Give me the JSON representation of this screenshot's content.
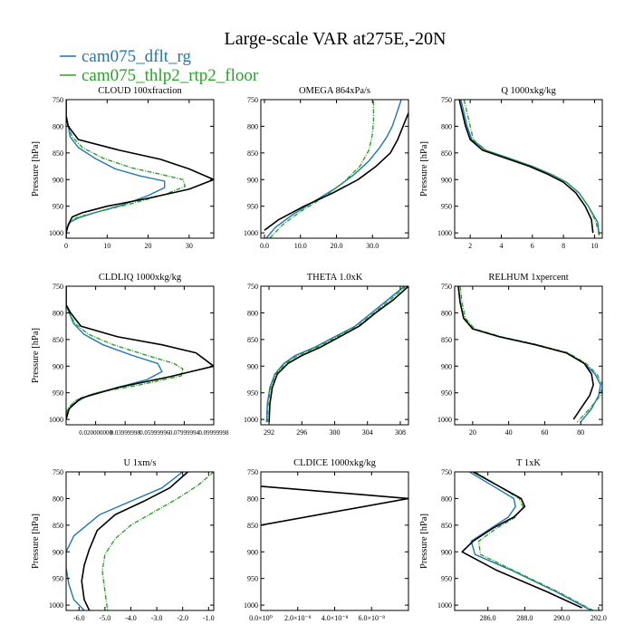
{
  "figure": {
    "title": "Large-scale VAR at275E,-20N",
    "legend": [
      {
        "name": "cam075_dflt_rg",
        "color": "#1f77b4"
      },
      {
        "name": "cam075_thlp2_rtp2_floor",
        "color": "#2ca02c"
      }
    ]
  },
  "colors": {
    "cam075_dflt_rg": "#1f77b4",
    "cam075_thlp2_rtp2_floor": "#2ca02c",
    "unlabeled_black": "#000000"
  },
  "chart_data": [
    {
      "type": "line",
      "title": "CLOUD  100xfraction",
      "ylabel": "Pressure [hPa]",
      "ylim": [
        1010,
        750
      ],
      "yticks": [
        750,
        800,
        850,
        900,
        950,
        1000
      ],
      "xlim": [
        0,
        36
      ],
      "xticks": [
        0,
        10,
        20,
        30
      ],
      "xticklabels": [
        "0",
        "10",
        "20",
        "30"
      ],
      "series": [
        {
          "name": "cam075_dflt_rg",
          "color": "#1f77b4",
          "x": [
            0,
            0,
            0.5,
            1,
            3,
            7,
            12,
            18,
            24,
            24,
            20,
            14,
            7,
            3,
            1,
            0.3,
            0,
            0
          ],
          "y": [
            750,
            780,
            800,
            820,
            840,
            860,
            880,
            893,
            903,
            915,
            930,
            947,
            962,
            972,
            980,
            990,
            1000,
            1010
          ]
        },
        {
          "name": "cam075_thlp2_rtp2_floor",
          "color": "#2ca02c",
          "x": [
            0,
            0,
            0.5,
            1.5,
            4,
            9,
            16,
            23,
            28.5,
            29,
            24,
            16,
            8,
            3,
            1,
            0.3,
            0,
            0
          ],
          "y": [
            750,
            780,
            800,
            820,
            840,
            860,
            878,
            890,
            900,
            913,
            928,
            945,
            960,
            970,
            978,
            990,
            1000,
            1010
          ]
        },
        {
          "color": "#000000",
          "x": [
            0,
            0,
            0.5,
            3,
            13,
            23,
            30,
            36,
            30,
            20,
            10,
            4,
            1.5,
            0.5,
            0,
            0
          ],
          "y": [
            750,
            780,
            800,
            825,
            845,
            862,
            880,
            900,
            918,
            935,
            950,
            962,
            970,
            985,
            1000,
            1010
          ]
        }
      ]
    },
    {
      "type": "line",
      "title": "OMEGA  864xPa/s",
      "ylabel": "",
      "ylim": [
        1010,
        750
      ],
      "yticks": [
        750,
        800,
        850,
        900,
        950,
        1000
      ],
      "xlim": [
        -1,
        40
      ],
      "xticks": [
        0,
        10,
        20,
        30
      ],
      "xticklabels": [
        "0.0",
        "10.0",
        "20.0",
        "30.0"
      ],
      "series": [
        {
          "name": "cam075_dflt_rg",
          "color": "#1f77b4",
          "x": [
            0.5,
            3,
            8,
            14,
            20,
            25,
            29,
            32,
            34,
            35.5,
            36.5,
            37.5,
            38
          ],
          "y": [
            1010,
            990,
            965,
            940,
            915,
            890,
            865,
            840,
            820,
            800,
            780,
            760,
            750
          ]
        },
        {
          "name": "cam075_thlp2_rtp2_floor",
          "color": "#2ca02c",
          "x": [
            1.5,
            5,
            10,
            16,
            22,
            26.5,
            29,
            30,
            30.3,
            30.3,
            30.3
          ],
          "y": [
            1010,
            985,
            960,
            935,
            905,
            875,
            845,
            815,
            790,
            770,
            750
          ]
        },
        {
          "color": "#000000",
          "x": [
            0,
            4,
            11,
            19,
            26,
            31,
            35,
            37,
            38.5,
            40
          ],
          "y": [
            995,
            975,
            950,
            925,
            900,
            875,
            850,
            825,
            800,
            775
          ]
        }
      ]
    },
    {
      "type": "line",
      "title": "Q  1000xkg/kg",
      "ylabel": "Pressure [hPa]",
      "ylim": [
        1010,
        750
      ],
      "yticks": [
        750,
        800,
        850,
        900,
        950,
        1000
      ],
      "xlim": [
        1,
        10.5
      ],
      "xticks": [
        2,
        4,
        6,
        8,
        10
      ],
      "xticklabels": [
        "2",
        "4",
        "6",
        "8",
        "10"
      ],
      "series": [
        {
          "name": "cam075_dflt_rg",
          "color": "#1f77b4",
          "x": [
            1.4,
            1.6,
            1.8,
            2.1,
            3,
            4.5,
            6,
            7.2,
            8.2,
            9,
            9.6,
            10.2,
            10.3
          ],
          "y": [
            750,
            775,
            800,
            825,
            845,
            860,
            875,
            890,
            905,
            925,
            950,
            980,
            1005
          ]
        },
        {
          "name": "cam075_thlp2_rtp2_floor",
          "color": "#2ca02c",
          "x": [
            1.6,
            1.8,
            2,
            2.2,
            3,
            4.5,
            6,
            7.2,
            8.2,
            9,
            9.6,
            10.1,
            10.3
          ],
          "y": [
            750,
            775,
            800,
            825,
            845,
            860,
            875,
            890,
            905,
            925,
            950,
            980,
            1005
          ]
        },
        {
          "color": "#000000",
          "x": [
            1.3,
            1.5,
            1.7,
            2,
            2.8,
            4.3,
            5.8,
            7,
            8,
            8.8,
            9.4,
            9.8,
            9.9
          ],
          "y": [
            750,
            775,
            800,
            825,
            845,
            860,
            875,
            890,
            905,
            925,
            950,
            975,
            1000
          ]
        }
      ]
    },
    {
      "type": "line",
      "title": "CLDLIQ  1000xkg/kg",
      "ylabel": "Pressure [hPa]",
      "ylim": [
        1010,
        750
      ],
      "yticks": [
        750,
        800,
        850,
        900,
        950,
        1000
      ],
      "xlim": [
        0,
        0.1
      ],
      "xticks": [
        0.02,
        0.04,
        0.06,
        0.08,
        0.1
      ],
      "xticklabels": [
        "0.020000000",
        "0.03999998",
        "0.05999996",
        "0.07999994",
        "0.09999998"
      ],
      "series": [
        {
          "name": "cam075_dflt_rg",
          "color": "#1f77b4",
          "x": [
            0,
            0,
            0.002,
            0.005,
            0.012,
            0.025,
            0.045,
            0.062,
            0.065,
            0.055,
            0.035,
            0.015,
            0.005,
            0.001,
            0
          ],
          "y": [
            750,
            785,
            800,
            820,
            840,
            860,
            880,
            895,
            910,
            925,
            940,
            955,
            970,
            985,
            1000
          ]
        },
        {
          "name": "cam075_thlp2_rtp2_floor",
          "color": "#2ca02c",
          "x": [
            0,
            0,
            0.002,
            0.006,
            0.015,
            0.032,
            0.055,
            0.073,
            0.079,
            0.078,
            0.05,
            0.02,
            0.006,
            0.001,
            0
          ],
          "y": [
            750,
            785,
            800,
            820,
            840,
            860,
            880,
            895,
            905,
            918,
            935,
            950,
            965,
            980,
            1000
          ]
        },
        {
          "color": "#000000",
          "x": [
            0,
            0,
            0.003,
            0.01,
            0.035,
            0.065,
            0.088,
            0.1,
            0.07,
            0.035,
            0.01,
            0.002,
            0
          ],
          "y": [
            750,
            785,
            800,
            825,
            845,
            860,
            875,
            900,
            920,
            940,
            960,
            980,
            1000
          ]
        }
      ]
    },
    {
      "type": "line",
      "title": "THETA  1.0xK",
      "ylabel": "",
      "ylim": [
        1010,
        750
      ],
      "yticks": [
        750,
        800,
        850,
        900,
        950,
        1000
      ],
      "xlim": [
        291,
        309
      ],
      "xticks": [
        292,
        296,
        300,
        304,
        308
      ],
      "xticklabels": [
        "292",
        "296",
        "300",
        "304",
        "308"
      ],
      "series": [
        {
          "name": "cam075_dflt_rg",
          "color": "#1f77b4",
          "x": [
            308.5,
            306.5,
            304.5,
            302.5,
            300,
            297.5,
            295.2,
            293.8,
            292.7,
            292.1,
            291.8,
            291.7
          ],
          "y": [
            750,
            775,
            800,
            825,
            845,
            865,
            880,
            895,
            915,
            940,
            970,
            1005
          ]
        },
        {
          "name": "cam075_thlp2_rtp2_floor",
          "color": "#2ca02c",
          "x": [
            308.7,
            306.8,
            304.8,
            302.8,
            300.3,
            297.8,
            295.5,
            294,
            292.8,
            292.2,
            291.9,
            291.8
          ],
          "y": [
            750,
            775,
            800,
            825,
            845,
            865,
            880,
            895,
            915,
            940,
            970,
            1005
          ]
        },
        {
          "color": "#000000",
          "x": [
            309,
            307.2,
            305,
            303,
            300.6,
            298.2,
            296,
            294.3,
            293,
            292.4,
            292.1,
            292
          ],
          "y": [
            750,
            775,
            800,
            825,
            845,
            865,
            880,
            895,
            915,
            940,
            970,
            1005
          ]
        }
      ]
    },
    {
      "type": "line",
      "title": "RELHUM  1xpercent",
      "ylabel": "",
      "ylim": [
        1010,
        750
      ],
      "yticks": [
        750,
        800,
        850,
        900,
        950,
        1000
      ],
      "xlim": [
        10,
        92
      ],
      "xticks": [
        20,
        40,
        60,
        80
      ],
      "xticklabels": [
        "20",
        "40",
        "60",
        "80"
      ],
      "series": [
        {
          "name": "cam075_dflt_rg",
          "color": "#1f77b4",
          "x": [
            12,
            13,
            15,
            20,
            35,
            55,
            72,
            82,
            88,
            91,
            90,
            86,
            80
          ],
          "y": [
            750,
            780,
            810,
            830,
            845,
            860,
            875,
            895,
            915,
            935,
            955,
            980,
            1005
          ]
        },
        {
          "name": "cam075_thlp2_rtp2_floor",
          "color": "#2ca02c",
          "x": [
            13,
            14,
            16,
            21,
            36,
            56,
            73,
            83,
            89,
            92,
            91,
            85,
            78
          ],
          "y": [
            750,
            780,
            810,
            830,
            845,
            860,
            875,
            895,
            915,
            935,
            955,
            980,
            1005
          ]
        },
        {
          "color": "#000000",
          "x": [
            12,
            13,
            15,
            20,
            35,
            55,
            72,
            82,
            86,
            87,
            85,
            80,
            76
          ],
          "y": [
            750,
            780,
            810,
            830,
            845,
            860,
            875,
            895,
            915,
            935,
            955,
            980,
            1000
          ]
        }
      ]
    },
    {
      "type": "line",
      "title": "U  1xm/s",
      "ylabel": "Pressure [hPa]",
      "ylim": [
        1010,
        750
      ],
      "yticks": [
        750,
        800,
        850,
        900,
        950,
        1000
      ],
      "xlim": [
        -6.5,
        -0.8
      ],
      "xticks": [
        -6,
        -5,
        -4,
        -3,
        -2,
        -1
      ],
      "xticklabels": [
        "-6.0",
        "-5.0",
        "-4.0",
        "-3.0",
        "-2.0",
        "-1.0"
      ],
      "series": [
        {
          "name": "cam075_dflt_rg",
          "color": "#1f77b4",
          "x": [
            -2,
            -2.8,
            -4,
            -5.2,
            -6.2,
            -6.5,
            -6.5,
            -6.4,
            -6.2,
            -5.8
          ],
          "y": [
            750,
            780,
            805,
            830,
            870,
            900,
            930,
            960,
            990,
            1010
          ]
        },
        {
          "name": "cam075_thlp2_rtp2_floor",
          "color": "#2ca02c",
          "x": [
            -0.8,
            -1.4,
            -2.2,
            -3.1,
            -4,
            -4.6,
            -5,
            -5.1,
            -5,
            -4.9
          ],
          "y": [
            750,
            775,
            800,
            825,
            850,
            875,
            905,
            935,
            975,
            1010
          ]
        },
        {
          "color": "#000000",
          "x": [
            -1.8,
            -2.5,
            -3.5,
            -4.6,
            -5.3,
            -5.6,
            -5.8,
            -5.9,
            -5.8,
            -5.6
          ],
          "y": [
            750,
            780,
            805,
            830,
            860,
            895,
            925,
            955,
            990,
            1010
          ]
        }
      ]
    },
    {
      "type": "line",
      "title": "CLDICE  1000xkg/kg",
      "ylabel": "",
      "ylim": [
        1010,
        750
      ],
      "yticks": [
        750,
        800,
        850,
        900,
        950,
        1000
      ],
      "xlim": [
        0,
        8e-08
      ],
      "xticks": [
        0,
        2e-08,
        4e-08,
        6e-08
      ],
      "xticklabels": [
        "0.0×10⁰",
        "2.0×10⁻⁸",
        "4.0×10⁻⁸",
        "6.0×10⁻⁸"
      ],
      "series": [
        {
          "color": "#000000",
          "x": [
            0,
            8e-08,
            0
          ],
          "y": [
            777,
            800,
            850
          ]
        }
      ]
    },
    {
      "type": "line",
      "title": "T  1xK",
      "ylabel": "Pressure [hPa]",
      "ylim": [
        1010,
        750
      ],
      "yticks": [
        750,
        800,
        850,
        900,
        950,
        1000
      ],
      "xlim": [
        284.2,
        292.2
      ],
      "xticks": [
        286,
        288,
        290,
        292
      ],
      "xticklabels": [
        "286.0",
        "288.0",
        "290.0",
        "292.0"
      ],
      "series": [
        {
          "name": "cam075_dflt_rg",
          "color": "#1f77b4",
          "x": [
            285,
            286.2,
            287.4,
            287.5,
            287.1,
            286.2,
            285.1,
            285.3,
            287.3,
            289.7,
            291.6
          ],
          "y": [
            750,
            775,
            800,
            815,
            835,
            855,
            880,
            905,
            935,
            975,
            1010
          ]
        },
        {
          "name": "cam075_thlp2_rtp2_floor",
          "color": "#2ca02c",
          "x": [
            285.3,
            286.5,
            287.7,
            287.9,
            287.5,
            286.5,
            285.5,
            285.6,
            287.4,
            289.8,
            291.7
          ],
          "y": [
            750,
            775,
            800,
            815,
            835,
            855,
            880,
            905,
            935,
            975,
            1010
          ]
        },
        {
          "color": "#000000",
          "x": [
            285.2,
            286.5,
            287.8,
            288,
            287.4,
            286.3,
            285.2,
            284.6,
            286.5,
            289.2,
            291.1
          ],
          "y": [
            750,
            775,
            800,
            815,
            835,
            855,
            880,
            900,
            935,
            975,
            1005
          ]
        }
      ]
    }
  ]
}
